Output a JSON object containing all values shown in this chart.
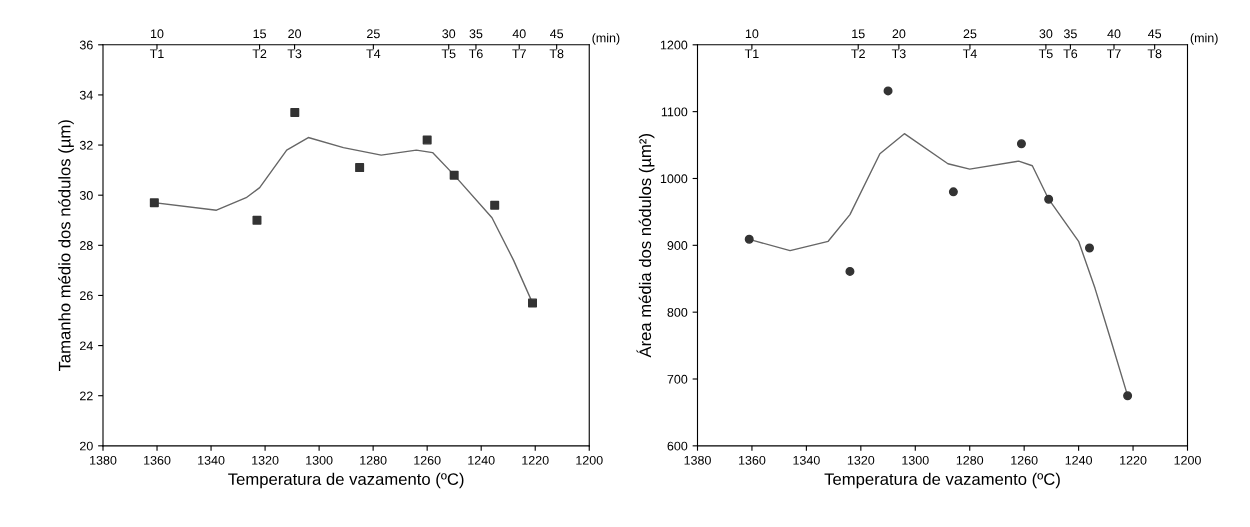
{
  "chart_data": [
    {
      "type": "scatter",
      "xlabel": "Temperatura de vazamento (ºC)",
      "ylabel": "Tamanho médio dos nódulos (µm)",
      "xlim": [
        1380,
        1200
      ],
      "xticks": [
        1380,
        1360,
        1340,
        1320,
        1300,
        1280,
        1260,
        1240,
        1220,
        1200
      ],
      "ylim": [
        20,
        36
      ],
      "yticks": [
        20,
        22,
        24,
        26,
        28,
        30,
        32,
        34,
        36
      ],
      "annotations": [
        "10",
        "15",
        "20",
        "25",
        "30",
        "35",
        "40",
        "45",
        "T1",
        "T2",
        "T3",
        "T4",
        "T5",
        "T6",
        "T7",
        "T8",
        "(min)"
      ],
      "grid": false,
      "series": [
        {
          "marker": "square",
          "color": "#333333",
          "x": [
            1361,
            1323,
            1309,
            1285,
            1260,
            1250,
            1235,
            1221
          ],
          "values": [
            29.7,
            29.0,
            33.3,
            31.1,
            32.2,
            30.8,
            29.6,
            25.7
          ]
        },
        {
          "type": "line",
          "marker": "none",
          "line_style": "solid",
          "color": "#666666",
          "x": [
            1361,
            1338,
            1327,
            1322,
            1312,
            1304,
            1291,
            1277,
            1264,
            1258,
            1250,
            1236,
            1228,
            1221
          ],
          "values": [
            29.7,
            29.4,
            29.9,
            30.3,
            31.8,
            32.3,
            31.9,
            31.6,
            31.8,
            31.7,
            30.8,
            29.1,
            27.4,
            25.7
          ]
        }
      ]
    },
    {
      "type": "scatter",
      "xlabel": "Temperatura de vazamento (ºC)",
      "ylabel": "Área média dos nódulos (µm²)",
      "xlim": [
        1380,
        1200
      ],
      "xticks": [
        1380,
        1360,
        1340,
        1320,
        1300,
        1280,
        1260,
        1240,
        1220,
        1200
      ],
      "ylim": [
        600,
        1200
      ],
      "yticks": [
        600,
        700,
        800,
        900,
        1000,
        1100,
        1200
      ],
      "annotations": [
        "10",
        "15",
        "20",
        "25",
        "30",
        "35",
        "40",
        "45",
        "T1",
        "T2",
        "T3",
        "T4",
        "T5",
        "T6",
        "T7",
        "T8",
        "(min)"
      ],
      "grid": false,
      "series": [
        {
          "marker": "circle",
          "color": "#333333",
          "x": [
            1361,
            1324,
            1310,
            1286,
            1261,
            1251,
            1236,
            1222
          ],
          "values": [
            909,
            861,
            1131,
            980,
            1052,
            969,
            896,
            675
          ]
        },
        {
          "type": "line",
          "marker": "none",
          "line_style": "solid",
          "color": "#666666",
          "x": [
            1361,
            1346,
            1332,
            1324,
            1313,
            1304,
            1288,
            1280,
            1262,
            1257,
            1251,
            1240,
            1234,
            1228,
            1222
          ],
          "values": [
            909,
            892,
            906,
            946,
            1037,
            1067,
            1022,
            1014,
            1026,
            1019,
            969,
            906,
            836,
            756,
            675
          ]
        }
      ]
    }
  ]
}
